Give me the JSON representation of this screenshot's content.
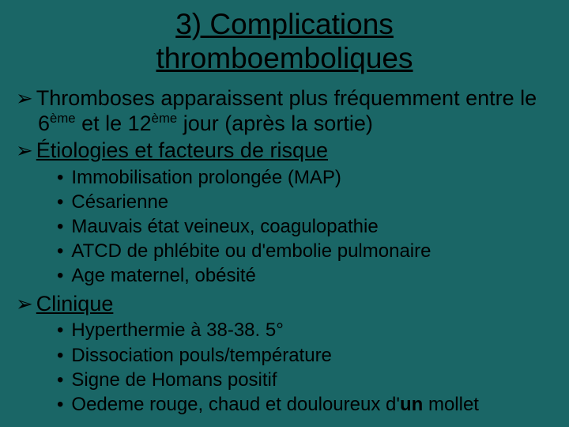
{
  "background_color": "#1a6666",
  "text_color": "#000000",
  "font_family": "Comic Sans MS",
  "title": {
    "line1": "3) ",
    "underlined1": "Complications",
    "underlined2": "thromboemboliques",
    "fontsize": 37
  },
  "bullets": {
    "arrow_glyph": "➢",
    "dot_glyph": "•",
    "item1_pre": "Thromboses apparaissent plus fréquemment entre le 6",
    "item1_sup1": "ème",
    "item1_mid": " et le 12",
    "item1_sup2": "ème",
    "item1_post": " jour (après la sortie)",
    "item2_label": "Étiologies et facteurs de risque",
    "item2_subs": {
      "s0": "Immobilisation prolongée (MAP)",
      "s1": "Césarienne",
      "s2": "Mauvais état veineux, coagulopathie",
      "s3": "ATCD de phlébite ou d'embolie pulmonaire",
      "s4": "Age maternel, obésité"
    },
    "item3_label": "Clinique",
    "item3_subs": {
      "s0": "Hyperthermie à 38-38. 5°",
      "s1": "Dissociation pouls/température",
      "s2": "Signe de Homans positif",
      "s3_pre": "Oedeme rouge, chaud et douloureux d'",
      "s3_bold": "un",
      "s3_post": " mollet"
    }
  }
}
